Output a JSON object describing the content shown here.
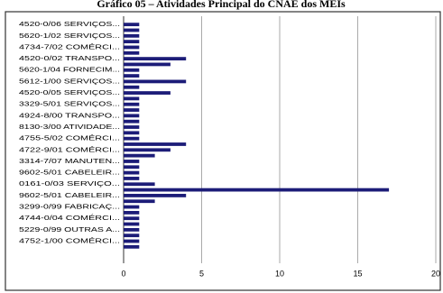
{
  "chart_data": {
    "type": "bar",
    "orientation": "horizontal",
    "title": "Gráfico 05 – Atividades Principal do CNAE dos MEIs",
    "categories": [
      "4520-0/06 SERVIÇOS...",
      null,
      "5620-1/02 SERVIÇOS...",
      null,
      "4734-7/02 COMÉRCI...",
      null,
      "4520-0/02 TRANSPO...",
      null,
      "5620-1/04 FORNECIM...",
      null,
      "5612-1/00 SERVIÇOS...",
      null,
      "4520-0/05 SERVIÇOS...",
      null,
      "3329-5/01 SERVIÇOS...",
      null,
      "4924-8/00 TRANSPO...",
      null,
      "8130-3/00 ATIVIDADE...",
      null,
      "4755-5/02 COMÉRCI...",
      null,
      "4722-9/01 COMÉRCI...",
      null,
      "3314-7/07 MANUTEN...",
      null,
      "9602-5/01 CABELEIR...",
      null,
      "0161-0/03 SERVIÇO...",
      null,
      "9602-5/01 CABELEIR...",
      null,
      "3299-0/99 FABRICAÇ...",
      null,
      "4744-0/04 COMÉRCI...",
      null,
      "5229-0/99 OUTRAS A...",
      null,
      "4752-1/00 COMÉRCI...",
      null
    ],
    "values": [
      1,
      1,
      1,
      1,
      1,
      1,
      4,
      3,
      1,
      1,
      4,
      1,
      3,
      1,
      1,
      1,
      1,
      1,
      1,
      1,
      1,
      4,
      3,
      2,
      1,
      1,
      1,
      1,
      2,
      17,
      4,
      2,
      1,
      1,
      1,
      1,
      1,
      1,
      1,
      1
    ],
    "color": "#1c1c78",
    "xlim": [
      0,
      20
    ],
    "xticks": [
      0,
      5,
      10,
      15,
      20
    ],
    "grid": true
  }
}
